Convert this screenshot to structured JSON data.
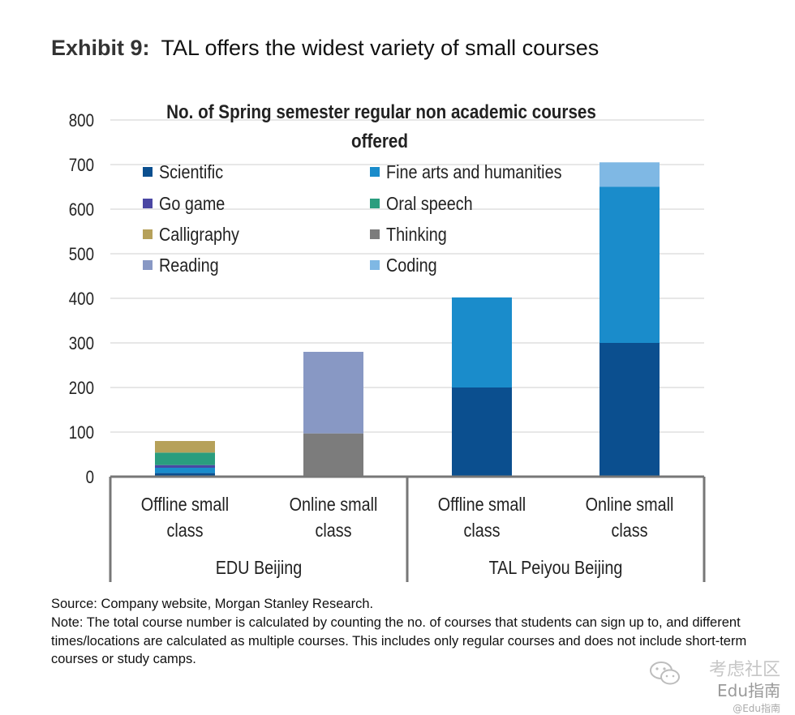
{
  "exhibit": {
    "label": "Exhibit 9:",
    "title": "TAL offers the widest variety of small courses"
  },
  "chart_data": {
    "type": "bar",
    "stacked": true,
    "title_line1": "No. of Spring semester regular non academic courses",
    "title_line2": "offered",
    "categories": [
      "Offline small class",
      "Online small class",
      "Offline small class",
      "Online small class"
    ],
    "category_lines": [
      [
        "Offline small",
        "class"
      ],
      [
        "Online small",
        "class"
      ],
      [
        "Offline small",
        "class"
      ],
      [
        "Online small",
        "class"
      ]
    ],
    "groups": [
      {
        "label": "EDU Beijing",
        "categories": [
          0,
          1
        ]
      },
      {
        "label": "TAL Peiyou Beijing",
        "categories": [
          2,
          3
        ]
      }
    ],
    "ylim": [
      0,
      800
    ],
    "yticks": [
      0,
      100,
      200,
      300,
      400,
      500,
      600,
      700,
      800
    ],
    "grid": true,
    "legend_position": "top-left",
    "series": [
      {
        "name": "Scientific",
        "color": "#0b4f8f",
        "values": [
          8,
          0,
          200,
          300
        ]
      },
      {
        "name": "Fine arts and humanities",
        "color": "#1a8ccb",
        "values": [
          12,
          0,
          202,
          350
        ]
      },
      {
        "name": "Go game",
        "color": "#4a47a3",
        "values": [
          6,
          0,
          0,
          0
        ]
      },
      {
        "name": "Oral speech",
        "color": "#2a9d7e",
        "values": [
          28,
          0,
          0,
          0
        ]
      },
      {
        "name": "Calligraphy",
        "color": "#b6a15a",
        "values": [
          26,
          0,
          0,
          0
        ]
      },
      {
        "name": "Thinking",
        "color": "#7c7c7c",
        "values": [
          0,
          97,
          0,
          0
        ]
      },
      {
        "name": "Reading",
        "color": "#8898c4",
        "values": [
          0,
          183,
          0,
          0
        ]
      },
      {
        "name": "Coding",
        "color": "#7fb8e4",
        "values": [
          0,
          0,
          0,
          55
        ]
      }
    ],
    "legend_order": [
      "Scientific",
      "Fine arts and humanities",
      "Go game",
      "Oral speech",
      "Calligraphy",
      "Thinking",
      "Reading",
      "Coding"
    ]
  },
  "source": "Source: Company website, Morgan Stanley Research.",
  "note": "Note: The total course number is calculated by counting the no. of courses that students can sign up to, and different times/locations are calculated as multiple courses. This includes only regular courses and does not include short-term courses or study camps.",
  "watermark": {
    "brand": "考虑社区",
    "sub": "Edu指南",
    "handle": "@Edu指南",
    "icon": "wechat-icon"
  }
}
